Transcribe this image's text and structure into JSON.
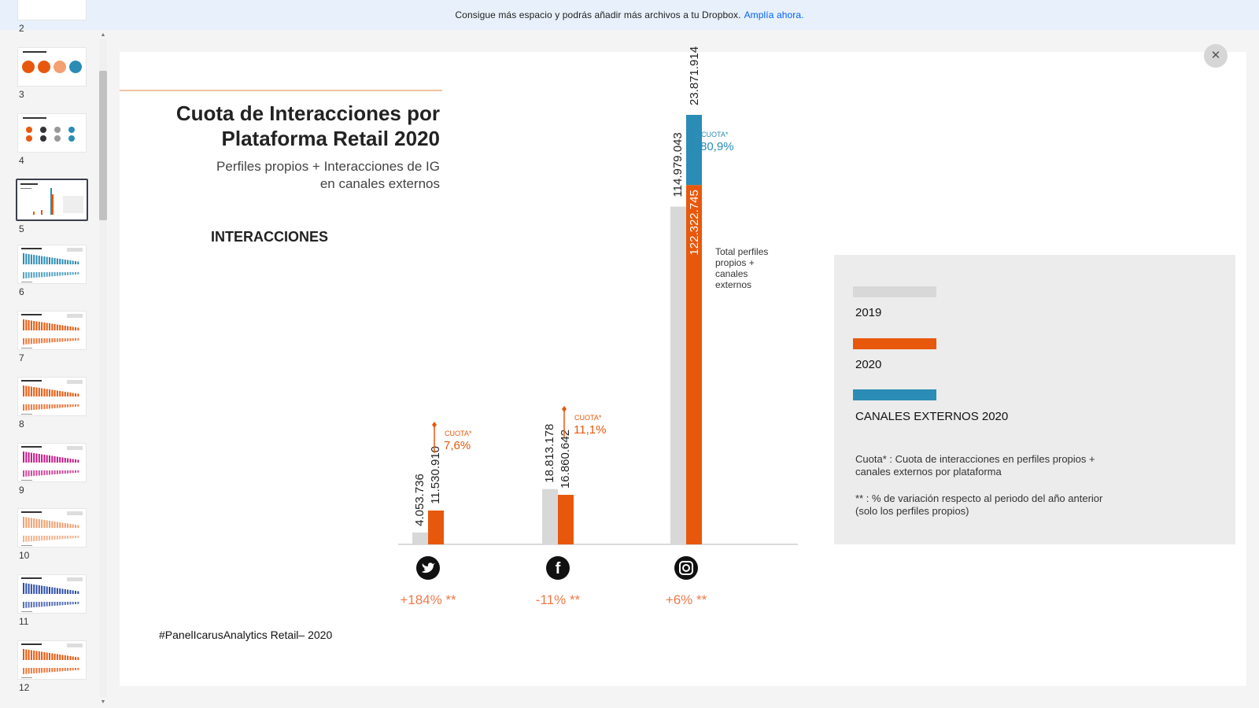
{
  "banner": {
    "text": "Consigue más espacio y podrás añadir más archivos a tu Dropbox.",
    "link": "Amplía ahora."
  },
  "sidebar": {
    "pages": [
      {
        "num": "2",
        "active": false
      },
      {
        "num": "3",
        "active": false
      },
      {
        "num": "4",
        "active": false
      },
      {
        "num": "5",
        "active": true
      },
      {
        "num": "6",
        "active": false
      },
      {
        "num": "7",
        "active": false
      },
      {
        "num": "8",
        "active": false
      },
      {
        "num": "9",
        "active": false
      },
      {
        "num": "10",
        "active": false
      },
      {
        "num": "11",
        "active": false
      },
      {
        "num": "12",
        "active": false
      }
    ],
    "thumbnail_accents": [
      "#e8580c",
      "#e8580c",
      "#e8580c",
      "#e8580c",
      "#2b8cb5",
      "#e8580c",
      "#e8580c",
      "#c41a8a",
      "#f0a070",
      "#2d4fa8"
    ]
  },
  "slide": {
    "title_line1": "Cuota de Interacciones por",
    "title_line2": "Plataforma Retail 2020",
    "subtitle_line1": "Perfiles propios + Interacciones de IG",
    "subtitle_line2": "en canales externos",
    "section_label": "INTERACCIONES",
    "footer": "#PanelIcarusAnalytics Retail–   2020",
    "legend": {
      "items": [
        {
          "label": "2019",
          "color": "#d8d8d8"
        },
        {
          "label": "2020",
          "color": "#e8580c"
        },
        {
          "label": "CANALES EXTERNOS 2020",
          "color": "#2b8cb5"
        }
      ],
      "note1_line1": "Cuota* : Cuota de interacciones en perfiles propios +",
      "note1_line2": "canales externos por plataforma",
      "note2_line1": "** : % de variación respecto al periodo del año anterior",
      "note2_line2": "(solo los perfiles propios)"
    },
    "instagram_annotation": [
      "Total perfiles",
      "propios +",
      "canales",
      "externos"
    ]
  },
  "chart_data": {
    "type": "bar",
    "categories": [
      "Twitter",
      "Facebook",
      "Instagram"
    ],
    "icons": [
      "twitter-icon",
      "facebook-icon",
      "instagram-icon"
    ],
    "series": [
      {
        "name": "2019",
        "color": "#d8d8d8",
        "values": [
          4053736,
          18813178,
          114979043
        ],
        "labels": [
          "4.053.736",
          "18.813.178",
          "114.979.043"
        ]
      },
      {
        "name": "2020",
        "color": "#e8580c",
        "values": [
          11530910,
          16860642,
          122322745
        ],
        "labels": [
          "11.530.910",
          "16.860.642",
          "122.322.745"
        ]
      },
      {
        "name": "CANALES EXTERNOS 2020",
        "color": "#2b8cb5",
        "values": [
          0,
          0,
          23871914
        ],
        "labels": [
          "",
          "",
          "23.871.914"
        ]
      }
    ],
    "cuota_label": "CUOTA*",
    "cuota": [
      "7,6%",
      "11,1%",
      "80,9%"
    ],
    "cuota_colors": [
      "#e8580c",
      "#e8580c",
      "#2b8cb5"
    ],
    "variation": [
      "+184% **",
      "-11% **",
      "+6% **"
    ],
    "ylim": [
      0,
      146194659
    ]
  }
}
